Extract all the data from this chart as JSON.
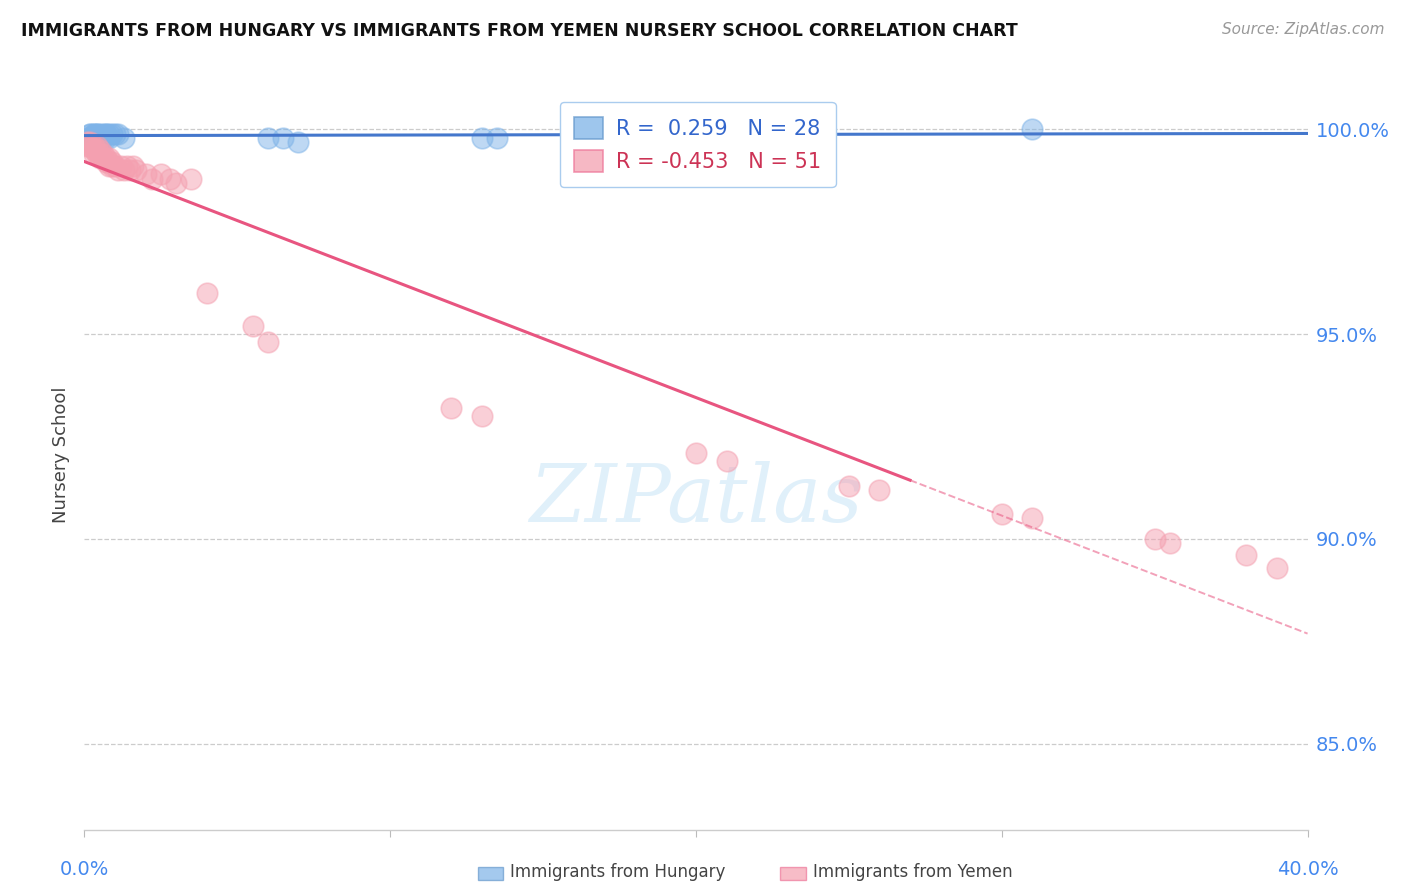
{
  "title": "IMMIGRANTS FROM HUNGARY VS IMMIGRANTS FROM YEMEN NURSERY SCHOOL CORRELATION CHART",
  "source": "Source: ZipAtlas.com",
  "ylabel": "Nursery School",
  "ytick_labels": [
    "100.0%",
    "95.0%",
    "90.0%",
    "85.0%"
  ],
  "ytick_values": [
    1.0,
    0.95,
    0.9,
    0.85
  ],
  "xlim": [
    0.0,
    0.4
  ],
  "ylim": [
    0.829,
    1.012
  ],
  "legend_hungary": "Immigrants from Hungary",
  "legend_yemen": "Immigrants from Yemen",
  "R_hungary": "0.259",
  "N_hungary": 28,
  "R_yemen": "-0.453",
  "N_yemen": 51,
  "color_hungary": "#7EB3E8",
  "color_yemen": "#F4A0B0",
  "trendline_hungary_color": "#4477CC",
  "trendline_yemen_color": "#E85580",
  "background_color": "#FFFFFF",
  "hungary_x": [
    0.001,
    0.002,
    0.002,
    0.003,
    0.003,
    0.003,
    0.004,
    0.004,
    0.004,
    0.005,
    0.005,
    0.006,
    0.006,
    0.007,
    0.007,
    0.007,
    0.008,
    0.008,
    0.009,
    0.01,
    0.011,
    0.013,
    0.06,
    0.065,
    0.07,
    0.13,
    0.135,
    0.31
  ],
  "hungary_y": [
    0.998,
    0.999,
    0.999,
    0.999,
    0.999,
    0.998,
    0.999,
    0.999,
    0.998,
    0.999,
    0.998,
    0.999,
    0.998,
    0.999,
    0.999,
    0.998,
    0.999,
    0.998,
    0.999,
    0.999,
    0.999,
    0.998,
    0.998,
    0.998,
    0.997,
    0.998,
    0.998,
    1.0
  ],
  "yemen_x": [
    0.001,
    0.001,
    0.002,
    0.002,
    0.003,
    0.003,
    0.003,
    0.004,
    0.004,
    0.004,
    0.005,
    0.005,
    0.005,
    0.006,
    0.006,
    0.007,
    0.007,
    0.008,
    0.008,
    0.008,
    0.009,
    0.009,
    0.01,
    0.011,
    0.012,
    0.013,
    0.014,
    0.015,
    0.016,
    0.017,
    0.02,
    0.022,
    0.025,
    0.028,
    0.03,
    0.035,
    0.04,
    0.055,
    0.06,
    0.12,
    0.13,
    0.2,
    0.21,
    0.25,
    0.26,
    0.3,
    0.31,
    0.35,
    0.355,
    0.38,
    0.39
  ],
  "yemen_y": [
    0.997,
    0.996,
    0.996,
    0.997,
    0.994,
    0.995,
    0.996,
    0.994,
    0.995,
    0.996,
    0.993,
    0.994,
    0.995,
    0.993,
    0.994,
    0.992,
    0.993,
    0.991,
    0.992,
    0.993,
    0.991,
    0.992,
    0.991,
    0.99,
    0.991,
    0.99,
    0.991,
    0.99,
    0.991,
    0.99,
    0.989,
    0.988,
    0.989,
    0.988,
    0.987,
    0.988,
    0.96,
    0.952,
    0.948,
    0.932,
    0.93,
    0.921,
    0.919,
    0.913,
    0.912,
    0.906,
    0.905,
    0.9,
    0.899,
    0.896,
    0.893
  ]
}
